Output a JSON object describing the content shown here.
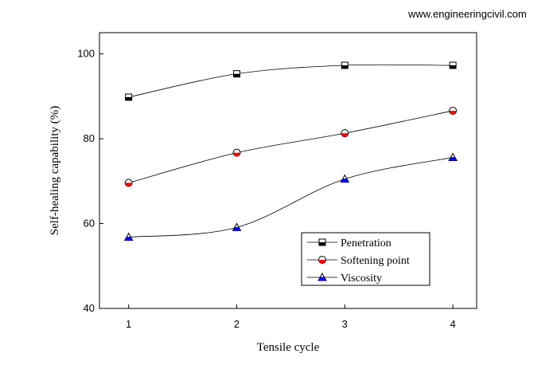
{
  "watermark": "www.engineeringcivil.com",
  "chart_data": {
    "type": "line",
    "title": "",
    "xlabel": "Tensile cycle",
    "ylabel": "Self-healing capability (%)",
    "x": [
      1,
      2,
      3,
      4
    ],
    "xlim": [
      0.73,
      4.22
    ],
    "ylim": [
      40,
      105
    ],
    "xticks": [
      1,
      2,
      3,
      4
    ],
    "yticks": [
      40,
      60,
      80,
      100
    ],
    "grid": false,
    "legend_position": "bottom-right",
    "series": [
      {
        "name": "Penetration",
        "values": [
          89.8,
          95.3,
          97.3,
          97.3
        ],
        "marker": "square",
        "marker_color": "#000000"
      },
      {
        "name": "Softening point",
        "values": [
          69.6,
          76.7,
          81.3,
          86.6
        ],
        "marker": "circle",
        "marker_color": "#ff0000"
      },
      {
        "name": "Viscosity",
        "values": [
          56.8,
          59.1,
          70.5,
          75.6
        ],
        "marker": "triangle",
        "marker_color": "#0000ff"
      }
    ]
  }
}
